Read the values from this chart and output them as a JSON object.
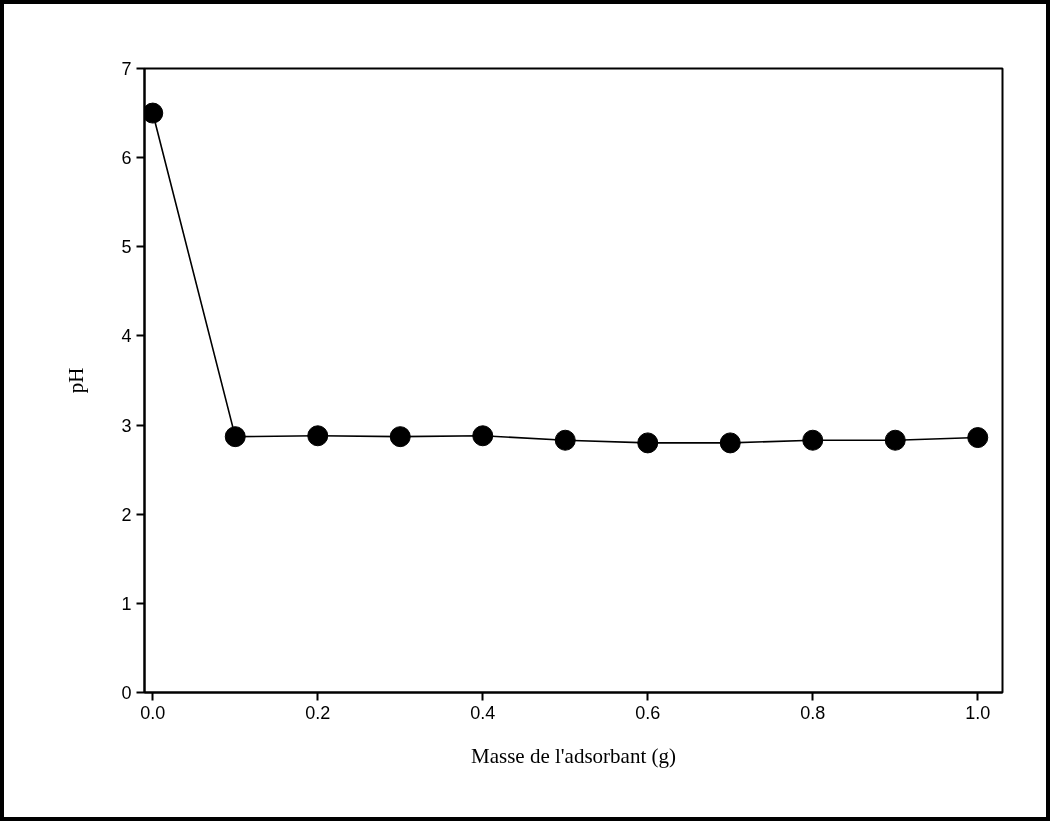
{
  "chart_data": {
    "type": "line",
    "xlabel": "Masse de l'adsorbant (g)",
    "ylabel": "pH",
    "x": [
      0.0,
      0.1,
      0.2,
      0.3,
      0.4,
      0.5,
      0.6,
      0.7,
      0.8,
      0.9,
      1.0
    ],
    "series": [
      {
        "color": "#000000",
        "values": [
          6.5,
          2.87,
          2.88,
          2.87,
          2.88,
          2.83,
          2.8,
          2.8,
          2.83,
          2.83,
          2.86
        ]
      }
    ],
    "xlim": [
      -0.01,
      1.03
    ],
    "ylim": [
      0,
      7
    ],
    "xticks": [
      {
        "value": 0.0,
        "label": "0.0"
      },
      {
        "value": 0.2,
        "label": "0.2"
      },
      {
        "value": 0.4,
        "label": "0.4"
      },
      {
        "value": 0.6,
        "label": "0.6"
      },
      {
        "value": 0.8,
        "label": "0.8"
      },
      {
        "value": 1.0,
        "label": "1.0"
      }
    ],
    "yticks": [
      0,
      1,
      2,
      3,
      4,
      5,
      6,
      7
    ],
    "marker": "circle",
    "line_style": "solid",
    "grid": false
  }
}
